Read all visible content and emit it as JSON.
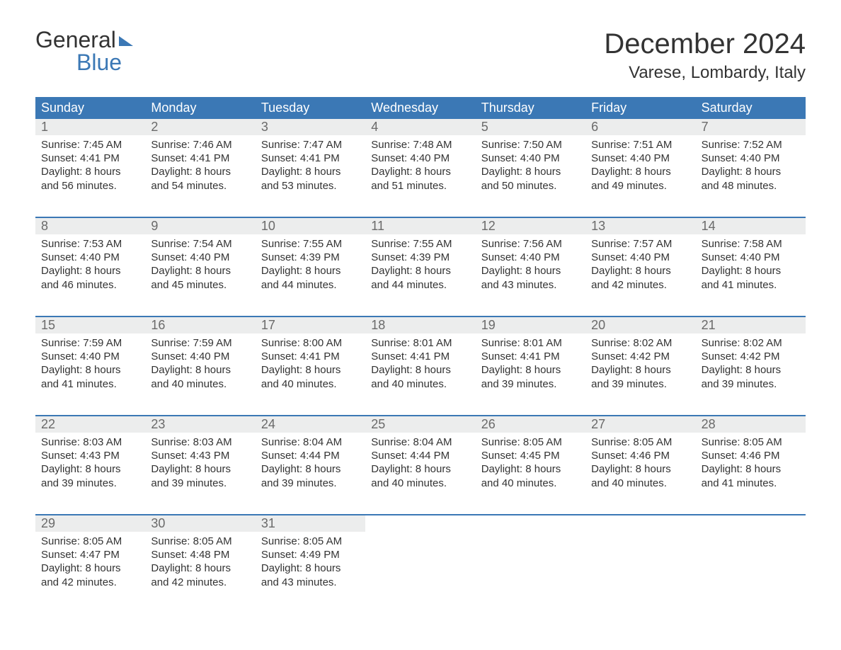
{
  "colors": {
    "brand_blue": "#3b78b5",
    "header_bg": "#3b78b5",
    "header_text": "#ffffff",
    "daynum_bg": "#eceded",
    "daynum_text": "#6a6a6a",
    "body_text": "#333333",
    "page_bg": "#ffffff"
  },
  "logo": {
    "word1": "General",
    "word2": "Blue"
  },
  "title": "December 2024",
  "location": "Varese, Lombardy, Italy",
  "day_headers": [
    "Sunday",
    "Monday",
    "Tuesday",
    "Wednesday",
    "Thursday",
    "Friday",
    "Saturday"
  ],
  "labels": {
    "sunrise": "Sunrise: ",
    "sunset": "Sunset: ",
    "daylight": "Daylight: "
  },
  "weeks": [
    [
      {
        "n": "1",
        "sunrise": "7:45 AM",
        "sunset": "4:41 PM",
        "daylight": "8 hours and 56 minutes."
      },
      {
        "n": "2",
        "sunrise": "7:46 AM",
        "sunset": "4:41 PM",
        "daylight": "8 hours and 54 minutes."
      },
      {
        "n": "3",
        "sunrise": "7:47 AM",
        "sunset": "4:41 PM",
        "daylight": "8 hours and 53 minutes."
      },
      {
        "n": "4",
        "sunrise": "7:48 AM",
        "sunset": "4:40 PM",
        "daylight": "8 hours and 51 minutes."
      },
      {
        "n": "5",
        "sunrise": "7:50 AM",
        "sunset": "4:40 PM",
        "daylight": "8 hours and 50 minutes."
      },
      {
        "n": "6",
        "sunrise": "7:51 AM",
        "sunset": "4:40 PM",
        "daylight": "8 hours and 49 minutes."
      },
      {
        "n": "7",
        "sunrise": "7:52 AM",
        "sunset": "4:40 PM",
        "daylight": "8 hours and 48 minutes."
      }
    ],
    [
      {
        "n": "8",
        "sunrise": "7:53 AM",
        "sunset": "4:40 PM",
        "daylight": "8 hours and 46 minutes."
      },
      {
        "n": "9",
        "sunrise": "7:54 AM",
        "sunset": "4:40 PM",
        "daylight": "8 hours and 45 minutes."
      },
      {
        "n": "10",
        "sunrise": "7:55 AM",
        "sunset": "4:39 PM",
        "daylight": "8 hours and 44 minutes."
      },
      {
        "n": "11",
        "sunrise": "7:55 AM",
        "sunset": "4:39 PM",
        "daylight": "8 hours and 44 minutes."
      },
      {
        "n": "12",
        "sunrise": "7:56 AM",
        "sunset": "4:40 PM",
        "daylight": "8 hours and 43 minutes."
      },
      {
        "n": "13",
        "sunrise": "7:57 AM",
        "sunset": "4:40 PM",
        "daylight": "8 hours and 42 minutes."
      },
      {
        "n": "14",
        "sunrise": "7:58 AM",
        "sunset": "4:40 PM",
        "daylight": "8 hours and 41 minutes."
      }
    ],
    [
      {
        "n": "15",
        "sunrise": "7:59 AM",
        "sunset": "4:40 PM",
        "daylight": "8 hours and 41 minutes."
      },
      {
        "n": "16",
        "sunrise": "7:59 AM",
        "sunset": "4:40 PM",
        "daylight": "8 hours and 40 minutes."
      },
      {
        "n": "17",
        "sunrise": "8:00 AM",
        "sunset": "4:41 PM",
        "daylight": "8 hours and 40 minutes."
      },
      {
        "n": "18",
        "sunrise": "8:01 AM",
        "sunset": "4:41 PM",
        "daylight": "8 hours and 40 minutes."
      },
      {
        "n": "19",
        "sunrise": "8:01 AM",
        "sunset": "4:41 PM",
        "daylight": "8 hours and 39 minutes."
      },
      {
        "n": "20",
        "sunrise": "8:02 AM",
        "sunset": "4:42 PM",
        "daylight": "8 hours and 39 minutes."
      },
      {
        "n": "21",
        "sunrise": "8:02 AM",
        "sunset": "4:42 PM",
        "daylight": "8 hours and 39 minutes."
      }
    ],
    [
      {
        "n": "22",
        "sunrise": "8:03 AM",
        "sunset": "4:43 PM",
        "daylight": "8 hours and 39 minutes."
      },
      {
        "n": "23",
        "sunrise": "8:03 AM",
        "sunset": "4:43 PM",
        "daylight": "8 hours and 39 minutes."
      },
      {
        "n": "24",
        "sunrise": "8:04 AM",
        "sunset": "4:44 PM",
        "daylight": "8 hours and 39 minutes."
      },
      {
        "n": "25",
        "sunrise": "8:04 AM",
        "sunset": "4:44 PM",
        "daylight": "8 hours and 40 minutes."
      },
      {
        "n": "26",
        "sunrise": "8:05 AM",
        "sunset": "4:45 PM",
        "daylight": "8 hours and 40 minutes."
      },
      {
        "n": "27",
        "sunrise": "8:05 AM",
        "sunset": "4:46 PM",
        "daylight": "8 hours and 40 minutes."
      },
      {
        "n": "28",
        "sunrise": "8:05 AM",
        "sunset": "4:46 PM",
        "daylight": "8 hours and 41 minutes."
      }
    ],
    [
      {
        "n": "29",
        "sunrise": "8:05 AM",
        "sunset": "4:47 PM",
        "daylight": "8 hours and 42 minutes."
      },
      {
        "n": "30",
        "sunrise": "8:05 AM",
        "sunset": "4:48 PM",
        "daylight": "8 hours and 42 minutes."
      },
      {
        "n": "31",
        "sunrise": "8:05 AM",
        "sunset": "4:49 PM",
        "daylight": "8 hours and 43 minutes."
      },
      null,
      null,
      null,
      null
    ]
  ],
  "layout": {
    "columns": 7,
    "font_family": "Arial",
    "title_fontsize": 40,
    "location_fontsize": 24,
    "dayhead_fontsize": 18,
    "body_fontsize": 15
  }
}
